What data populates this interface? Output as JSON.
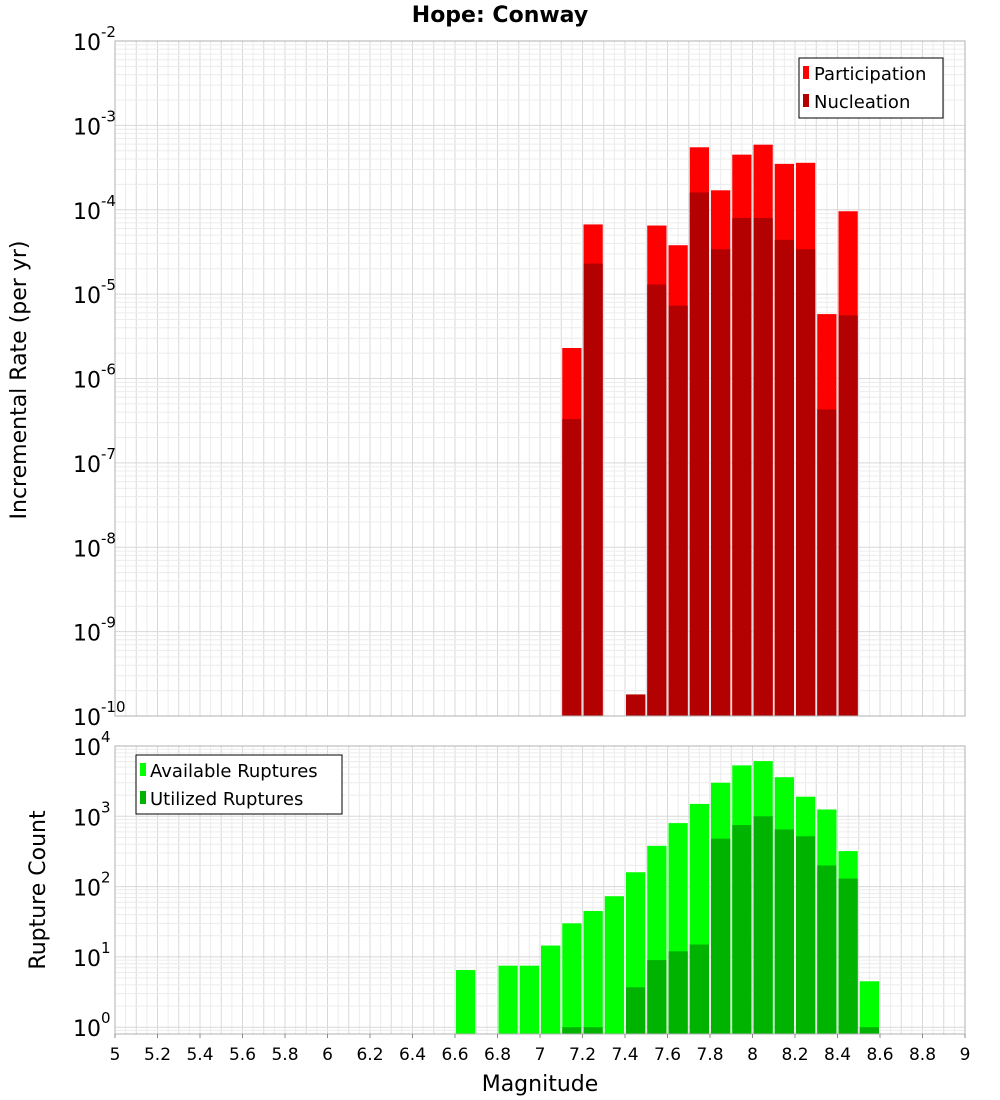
{
  "figure": {
    "title": "Hope: Conway"
  },
  "colors": {
    "participation": "#ff0000",
    "nucleation": "#b30000",
    "available": "#00ff00",
    "utilized": "#00b300",
    "grid_minor": "#ececec",
    "grid_major": "#d8d8d8",
    "frame": "#b0b0b0"
  },
  "chart_data": [
    {
      "type": "bar",
      "scale_y": "log",
      "ylabel": "Incremental Rate (per yr)",
      "ylim": [
        1e-10,
        0.01
      ],
      "xlim": [
        5,
        9
      ],
      "bin_width": 0.1,
      "grid": true,
      "legend": "top-right",
      "x": [
        7.15,
        7.25,
        7.45,
        7.55,
        7.65,
        7.75,
        7.85,
        7.95,
        8.05,
        8.15,
        8.25,
        8.35,
        8.45
      ],
      "series": [
        {
          "name": "Participation",
          "color_key": "participation",
          "values": [
            2.3e-06,
            6.7e-05,
            1.8e-10,
            6.5e-05,
            3.8e-05,
            0.00055,
            0.00017,
            0.00045,
            0.00059,
            0.00035,
            0.00036,
            5.8e-06,
            9.6e-05
          ]
        },
        {
          "name": "Nucleation",
          "color_key": "nucleation",
          "values": [
            3.3e-07,
            2.3e-05,
            1.8e-10,
            1.3e-05,
            7.3e-06,
            0.00016,
            3.4e-05,
            8e-05,
            8e-05,
            4.4e-05,
            3.4e-05,
            4.3e-07,
            5.6e-06
          ]
        }
      ]
    },
    {
      "type": "bar",
      "scale_y": "log",
      "ylabel": "Rupture Count",
      "xlabel": "Magnitude",
      "ylim": [
        0.8,
        10000
      ],
      "xlim": [
        5,
        9
      ],
      "bin_width": 0.1,
      "grid": true,
      "legend": "top-left",
      "x": [
        6.65,
        6.85,
        6.95,
        7.05,
        7.15,
        7.25,
        7.35,
        7.45,
        7.55,
        7.65,
        7.75,
        7.85,
        7.95,
        8.05,
        8.15,
        8.25,
        8.35,
        8.45,
        8.55
      ],
      "series": [
        {
          "name": "Available Ruptures",
          "color_key": "available",
          "values": [
            6.5,
            7.5,
            7.5,
            14.5,
            30,
            45,
            73,
            160,
            380,
            800,
            1500,
            3000,
            5300,
            6100,
            3600,
            1900,
            1250,
            320,
            4.5
          ]
        },
        {
          "name": "Utilized Ruptures",
          "color_key": "utilized",
          "values": [
            0,
            0,
            0,
            0,
            1,
            1,
            0,
            3.7,
            9,
            12,
            15,
            480,
            750,
            1000,
            650,
            520,
            200,
            130,
            1
          ]
        }
      ]
    }
  ],
  "x_ticks": [
    "5",
    "5.2",
    "5.4",
    "5.6",
    "5.8",
    "6",
    "6.2",
    "6.4",
    "6.6",
    "6.8",
    "7",
    "7.2",
    "7.4",
    "7.6",
    "7.8",
    "8",
    "8.2",
    "8.4",
    "8.6",
    "8.8",
    "9"
  ],
  "top_y_ticks": [
    {
      "base": "10",
      "exp": "-2"
    },
    {
      "base": "10",
      "exp": "-3"
    },
    {
      "base": "10",
      "exp": "-4"
    },
    {
      "base": "10",
      "exp": "-5"
    },
    {
      "base": "10",
      "exp": "-6"
    },
    {
      "base": "10",
      "exp": "-7"
    },
    {
      "base": "10",
      "exp": "-8"
    },
    {
      "base": "10",
      "exp": "-9"
    },
    {
      "base": "10",
      "exp": "-10"
    }
  ],
  "bottom_y_ticks": [
    {
      "base": "10",
      "exp": "4"
    },
    {
      "base": "10",
      "exp": "3"
    },
    {
      "base": "10",
      "exp": "2"
    },
    {
      "base": "10",
      "exp": "1"
    },
    {
      "base": "10",
      "exp": "0"
    }
  ]
}
